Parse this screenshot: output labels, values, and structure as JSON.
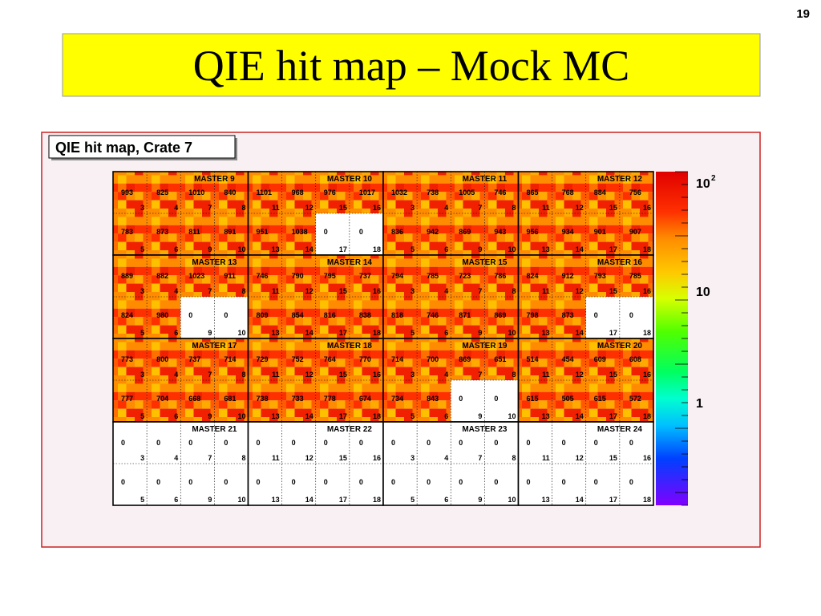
{
  "slide_number": "19",
  "title": "QIE hit map – Mock MC",
  "panel": {
    "label": "QIE hit map, Crate 7",
    "masters": [
      {
        "name": "MASTER 9",
        "counts": [
          993,
          825,
          1010,
          840,
          783,
          873,
          811,
          891
        ],
        "channels": [
          "3",
          "4",
          "7",
          "8",
          "5",
          "6",
          "9",
          "10"
        ]
      },
      {
        "name": "MASTER 10",
        "counts": [
          1101,
          968,
          976,
          1017,
          951,
          1038,
          0,
          0
        ],
        "channels": [
          "11",
          "12",
          "15",
          "16",
          "13",
          "14",
          "17",
          "18"
        ]
      },
      {
        "name": "MASTER 11",
        "counts": [
          1032,
          738,
          1005,
          746,
          836,
          942,
          869,
          943
        ],
        "channels": [
          "3",
          "4",
          "7",
          "8",
          "5",
          "6",
          "9",
          "10"
        ]
      },
      {
        "name": "MASTER 12",
        "counts": [
          865,
          768,
          884,
          756,
          956,
          934,
          901,
          907
        ],
        "channels": [
          "11",
          "12",
          "15",
          "16",
          "13",
          "14",
          "17",
          "18"
        ]
      },
      {
        "name": "MASTER 13",
        "counts": [
          889,
          882,
          1023,
          911,
          824,
          980,
          0,
          0
        ],
        "channels": [
          "3",
          "4",
          "7",
          "8",
          "5",
          "6",
          "9",
          "10"
        ]
      },
      {
        "name": "MASTER 14",
        "counts": [
          746,
          790,
          795,
          737,
          809,
          854,
          816,
          838
        ],
        "channels": [
          "11",
          "12",
          "15",
          "16",
          "13",
          "14",
          "17",
          "18"
        ]
      },
      {
        "name": "MASTER 15",
        "counts": [
          794,
          785,
          723,
          786,
          818,
          746,
          871,
          869
        ],
        "channels": [
          "3",
          "4",
          "7",
          "8",
          "5",
          "6",
          "9",
          "10"
        ]
      },
      {
        "name": "MASTER 16",
        "counts": [
          824,
          912,
          793,
          785,
          798,
          873,
          0,
          0
        ],
        "channels": [
          "11",
          "12",
          "15",
          "16",
          "13",
          "14",
          "17",
          "18"
        ]
      },
      {
        "name": "MASTER 17",
        "counts": [
          773,
          800,
          737,
          714,
          777,
          704,
          668,
          681
        ],
        "channels": [
          "3",
          "4",
          "7",
          "8",
          "5",
          "6",
          "9",
          "10"
        ]
      },
      {
        "name": "MASTER 18",
        "counts": [
          729,
          752,
          764,
          770,
          738,
          733,
          778,
          674
        ],
        "channels": [
          "11",
          "12",
          "15",
          "16",
          "13",
          "14",
          "17",
          "18"
        ]
      },
      {
        "name": "MASTER 19",
        "counts": [
          714,
          700,
          869,
          651,
          734,
          843,
          0,
          0
        ],
        "channels": [
          "3",
          "4",
          "7",
          "8",
          "5",
          "6",
          "9",
          "10"
        ]
      },
      {
        "name": "MASTER 20",
        "counts": [
          514,
          454,
          609,
          608,
          615,
          505,
          615,
          572
        ],
        "channels": [
          "11",
          "12",
          "15",
          "16",
          "13",
          "14",
          "17",
          "18"
        ]
      },
      {
        "name": "MASTER 21",
        "counts": [
          0,
          0,
          0,
          0,
          0,
          0,
          0,
          0
        ],
        "channels": [
          "3",
          "4",
          "7",
          "8",
          "5",
          "6",
          "9",
          "10"
        ]
      },
      {
        "name": "MASTER 22",
        "counts": [
          0,
          0,
          0,
          0,
          0,
          0,
          0,
          0
        ],
        "channels": [
          "11",
          "12",
          "15",
          "16",
          "13",
          "14",
          "17",
          "18"
        ]
      },
      {
        "name": "MASTER 23",
        "counts": [
          0,
          0,
          0,
          0,
          0,
          0,
          0,
          0
        ],
        "channels": [
          "3",
          "4",
          "7",
          "8",
          "5",
          "6",
          "9",
          "10"
        ]
      },
      {
        "name": "MASTER 24",
        "counts": [
          0,
          0,
          0,
          0,
          0,
          0,
          0,
          0
        ],
        "channels": [
          "11",
          "12",
          "15",
          "16",
          "13",
          "14",
          "17",
          "18"
        ]
      }
    ],
    "colorbar": {
      "labels": [
        "10",
        "10",
        "1"
      ],
      "top_exponent": "2"
    }
  }
}
